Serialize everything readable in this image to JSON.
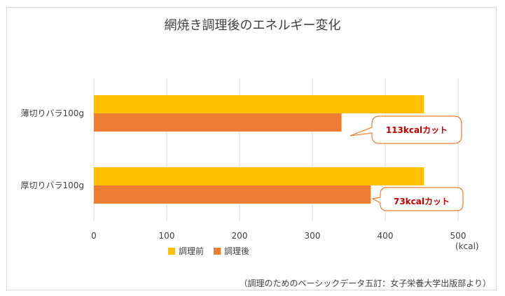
{
  "chart_data": {
    "type": "bar",
    "orientation": "horizontal",
    "title": "網焼き調理後のエネルギー変化",
    "categories": [
      "薄切りバラ100g",
      "厚切りバラ100g"
    ],
    "series": [
      {
        "name": "調理前",
        "color": "#ffc000",
        "values": [
          453,
          453
        ]
      },
      {
        "name": "調理後",
        "color": "#ed7d31",
        "values": [
          340,
          380
        ]
      }
    ],
    "xlim": [
      0,
      500
    ],
    "xticks": [
      0,
      100,
      200,
      300,
      400,
      500
    ],
    "xunit": "(kcal)",
    "grid": "vertical",
    "legend_position": "bottom",
    "annotations": [
      "113kcalカット",
      "73kcalカット"
    ]
  },
  "source_note": "（調理のためのベーシックデータ五訂：女子栄養大学出版部より）",
  "colors": {
    "callout_border": "#ed7d31",
    "callout_text": "#c00000",
    "gridline": "#d9d9d9"
  }
}
